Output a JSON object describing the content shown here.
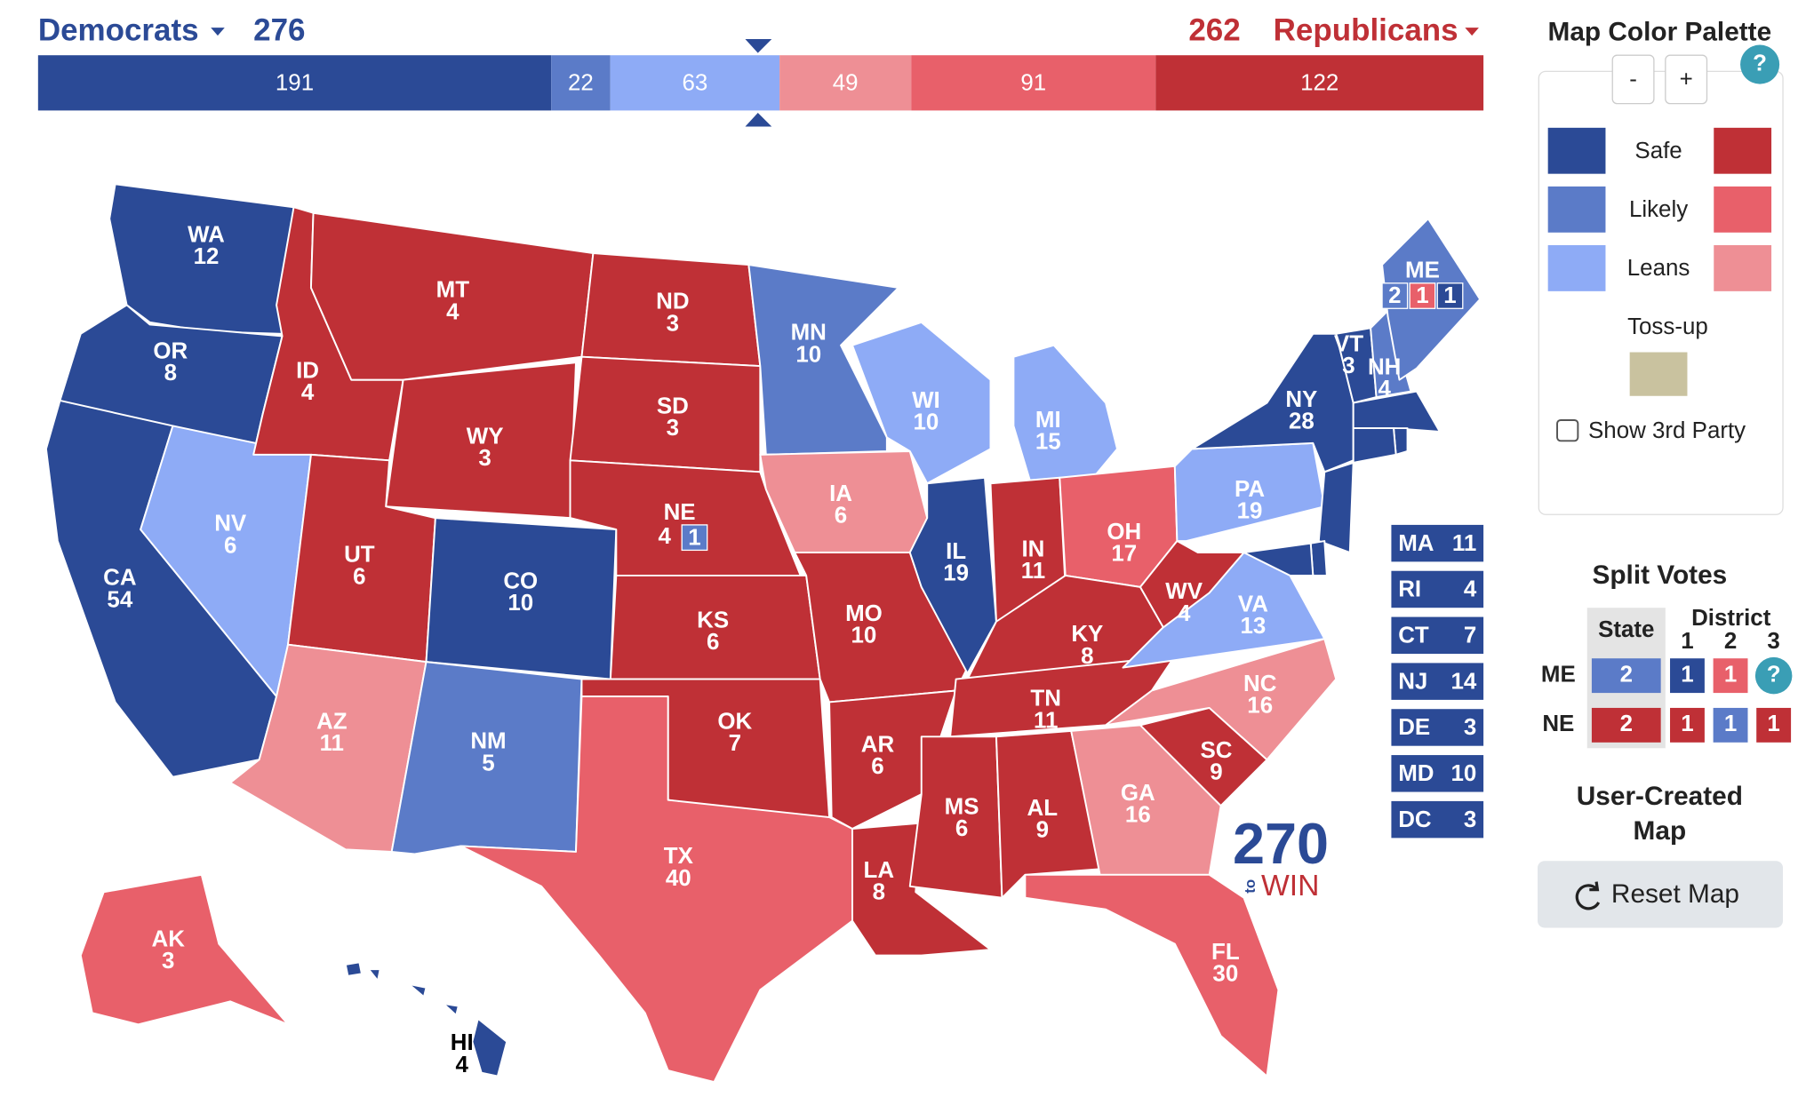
{
  "header": {
    "dem_label": "Democrats",
    "dem_total": 276,
    "rep_total": 262,
    "rep_label": "Republicans"
  },
  "bar": {
    "segments": [
      {
        "value": 191,
        "color": "#2b4a96"
      },
      {
        "value": 22,
        "color": "#5b7bc8"
      },
      {
        "value": 63,
        "color": "#8eabf6"
      },
      {
        "value": 49,
        "color": "#ee8f95"
      },
      {
        "value": 91,
        "color": "#e8606a"
      },
      {
        "value": 122,
        "color": "#bf3036"
      }
    ]
  },
  "states": [
    {
      "abbr": "WA",
      "ev": 12,
      "color": "#2b4a96"
    },
    {
      "abbr": "OR",
      "ev": 8,
      "color": "#2b4a96"
    },
    {
      "abbr": "CA",
      "ev": 54,
      "color": "#2b4a96"
    },
    {
      "abbr": "NV",
      "ev": 6,
      "color": "#8eabf6"
    },
    {
      "abbr": "ID",
      "ev": 4,
      "color": "#bf3036"
    },
    {
      "abbr": "MT",
      "ev": 4,
      "color": "#bf3036"
    },
    {
      "abbr": "WY",
      "ev": 3,
      "color": "#bf3036"
    },
    {
      "abbr": "UT",
      "ev": 6,
      "color": "#bf3036"
    },
    {
      "abbr": "AZ",
      "ev": 11,
      "color": "#ee8f95"
    },
    {
      "abbr": "CO",
      "ev": 10,
      "color": "#2b4a96"
    },
    {
      "abbr": "NM",
      "ev": 5,
      "color": "#5b7bc8"
    },
    {
      "abbr": "ND",
      "ev": 3,
      "color": "#bf3036"
    },
    {
      "abbr": "SD",
      "ev": 3,
      "color": "#bf3036"
    },
    {
      "abbr": "NE",
      "ev": 4,
      "color": "#bf3036",
      "splits": [
        {
          "value": 1,
          "color": "#5b7bc8"
        }
      ]
    },
    {
      "abbr": "KS",
      "ev": 6,
      "color": "#bf3036"
    },
    {
      "abbr": "OK",
      "ev": 7,
      "color": "#bf3036"
    },
    {
      "abbr": "TX",
      "ev": 40,
      "color": "#e8606a"
    },
    {
      "abbr": "MN",
      "ev": 10,
      "color": "#5b7bc8"
    },
    {
      "abbr": "IA",
      "ev": 6,
      "color": "#ee8f95"
    },
    {
      "abbr": "MO",
      "ev": 10,
      "color": "#bf3036"
    },
    {
      "abbr": "AR",
      "ev": 6,
      "color": "#bf3036"
    },
    {
      "abbr": "LA",
      "ev": 8,
      "color": "#bf3036"
    },
    {
      "abbr": "WI",
      "ev": 10,
      "color": "#8eabf6"
    },
    {
      "abbr": "IL",
      "ev": 19,
      "color": "#2b4a96"
    },
    {
      "abbr": "MI",
      "ev": 15,
      "color": "#8eabf6"
    },
    {
      "abbr": "IN",
      "ev": 11,
      "color": "#bf3036"
    },
    {
      "abbr": "OH",
      "ev": 17,
      "color": "#e8606a"
    },
    {
      "abbr": "KY",
      "ev": 8,
      "color": "#bf3036"
    },
    {
      "abbr": "TN",
      "ev": 11,
      "color": "#bf3036"
    },
    {
      "abbr": "MS",
      "ev": 6,
      "color": "#bf3036"
    },
    {
      "abbr": "AL",
      "ev": 9,
      "color": "#bf3036"
    },
    {
      "abbr": "GA",
      "ev": 16,
      "color": "#ee8f95"
    },
    {
      "abbr": "FL",
      "ev": 30,
      "color": "#e8606a"
    },
    {
      "abbr": "SC",
      "ev": 9,
      "color": "#bf3036"
    },
    {
      "abbr": "NC",
      "ev": 16,
      "color": "#ee8f95"
    },
    {
      "abbr": "VA",
      "ev": 13,
      "color": "#8eabf6"
    },
    {
      "abbr": "WV",
      "ev": 4,
      "color": "#bf3036"
    },
    {
      "abbr": "PA",
      "ev": 19,
      "color": "#8eabf6"
    },
    {
      "abbr": "NY",
      "ev": 28,
      "color": "#2b4a96"
    },
    {
      "abbr": "VT",
      "ev": 3,
      "color": "#2b4a96"
    },
    {
      "abbr": "NH",
      "ev": 4,
      "color": "#5b7bc8"
    },
    {
      "abbr": "ME",
      "color": "#5b7bc8",
      "splits": [
        {
          "value": 2,
          "color": "#5b7bc8"
        },
        {
          "value": 1,
          "color": "#e8606a"
        },
        {
          "value": 1,
          "color": "#2b4a96"
        }
      ]
    },
    {
      "abbr": "AK",
      "ev": 3,
      "color": "#e8606a"
    },
    {
      "abbr": "HI",
      "ev": 4,
      "color": "#2b4a96"
    }
  ],
  "small_states": [
    {
      "abbr": "MA",
      "ev": 11,
      "color": "#2b4a96"
    },
    {
      "abbr": "RI",
      "ev": 4,
      "color": "#2b4a96"
    },
    {
      "abbr": "CT",
      "ev": 7,
      "color": "#2b4a96"
    },
    {
      "abbr": "NJ",
      "ev": 14,
      "color": "#2b4a96"
    },
    {
      "abbr": "DE",
      "ev": 3,
      "color": "#2b4a96"
    },
    {
      "abbr": "MD",
      "ev": 10,
      "color": "#2b4a96"
    },
    {
      "abbr": "DC",
      "ev": 3,
      "color": "#2b4a96"
    }
  ],
  "logo": {
    "number": "270",
    "to": "to",
    "win": "WIN"
  },
  "palette": {
    "title": "Map Color Palette",
    "help": "?",
    "buttons": [
      "-",
      "+"
    ],
    "rows": [
      {
        "label": "Safe",
        "dem_color": "#2b4a96",
        "rep_color": "#bf3036"
      },
      {
        "label": "Likely",
        "dem_color": "#5b7bc8",
        "rep_color": "#e8606a"
      },
      {
        "label": "Leans",
        "dem_color": "#8eabf6",
        "rep_color": "#ee8f95"
      }
    ],
    "tossup": {
      "label": "Toss-up",
      "color": "#c9c29f"
    },
    "show_third_party": "Show 3rd Party"
  },
  "split_votes": {
    "title": "Split Votes",
    "state_header": "State",
    "district_header": "District",
    "district_numbers": [
      1,
      2,
      3
    ],
    "help": "?",
    "rows": [
      {
        "label": "ME",
        "state": {
          "value": 2,
          "color": "#5b7bc8"
        },
        "districts": [
          {
            "value": 1,
            "color": "#2b4a96"
          },
          {
            "value": 1,
            "color": "#e8606a"
          }
        ]
      },
      {
        "label": "NE",
        "state": {
          "value": 2,
          "color": "#bf3036"
        },
        "districts": [
          {
            "value": 1,
            "color": "#bf3036"
          },
          {
            "value": 1,
            "color": "#5b7bc8"
          },
          {
            "value": 1,
            "color": "#bf3036"
          }
        ]
      }
    ]
  },
  "user_map": {
    "title_lines": [
      "User-Created",
      "Map"
    ],
    "reset": "Reset Map"
  }
}
